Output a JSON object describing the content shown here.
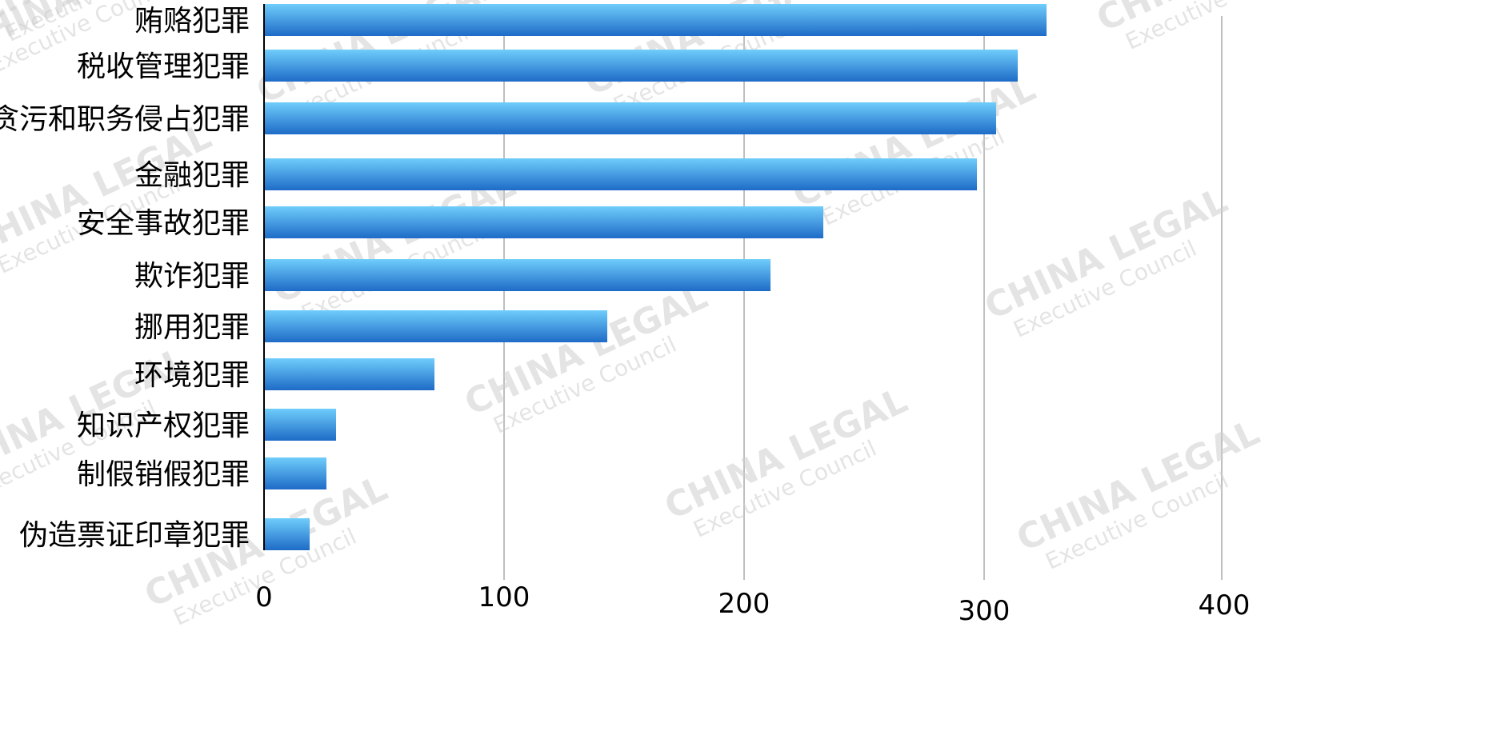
{
  "chart_data": {
    "type": "bar",
    "orientation": "horizontal",
    "title": "",
    "xlabel": "",
    "ylabel": "",
    "xlim": [
      0,
      400
    ],
    "x_ticks": [
      0,
      100,
      200,
      300,
      400
    ],
    "grid": "vertical",
    "legend": "none",
    "categories": [
      "贿赂犯罪",
      "税收管理犯罪",
      "贪污和职务侵占犯罪",
      "金融犯罪",
      "安全事故犯罪",
      "欺诈犯罪",
      "挪用犯罪",
      "环境犯罪",
      "知识产权犯罪",
      "制假销假犯罪",
      "伪造票证印章犯罪"
    ],
    "values": [
      326,
      314,
      305,
      297,
      233,
      211,
      143,
      71,
      30,
      26,
      19
    ],
    "colors": {
      "bar_top": "#6fcdfb",
      "bar_bottom": "#1e6bc7",
      "grid": "#bfbfbf",
      "axis": "#000000",
      "text": "#000000"
    }
  },
  "watermark": {
    "line1": "CHINA LEGAL",
    "line2": "Executive Council"
  }
}
